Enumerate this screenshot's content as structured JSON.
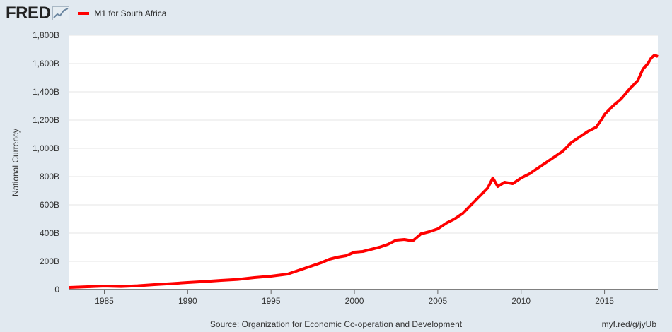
{
  "header": {
    "logo_text": "FRED",
    "legend_label": "M1 for South Africa"
  },
  "footer": {
    "source": "Source: Organization for Economic Co-operation and Development",
    "url": "myf.red/g/jyUb"
  },
  "colors": {
    "series": "#ff0000",
    "background": "#e1e9f0",
    "plot": "#ffffff"
  },
  "chart_data": {
    "type": "line",
    "title": "",
    "xlabel": "",
    "ylabel": "National Currency",
    "xlim": [
      1982.9,
      2018.2
    ],
    "ylim": [
      0,
      1800
    ],
    "grid": true,
    "legend": "top-left",
    "xticks": [
      1985,
      1990,
      1995,
      2000,
      2005,
      2010,
      2015
    ],
    "yticks": [
      0,
      200,
      400,
      600,
      800,
      1000,
      1200,
      1400,
      1600,
      1800
    ],
    "ytick_labels": [
      "0",
      "200B",
      "400B",
      "600B",
      "800B",
      "1,000B",
      "1,200B",
      "1,400B",
      "1,600B",
      "1,800B"
    ],
    "series": [
      {
        "name": "M1 for South Africa",
        "color": "#ff0000",
        "x": [
          1982.9,
          1984.0,
          1985.0,
          1986.0,
          1987.0,
          1988.0,
          1989.0,
          1990.0,
          1991.0,
          1992.0,
          1993.0,
          1994.0,
          1995.0,
          1996.0,
          1996.5,
          1997.0,
          1997.5,
          1998.0,
          1998.5,
          1999.0,
          1999.5,
          2000.0,
          2000.5,
          2001.0,
          2001.5,
          2002.0,
          2002.5,
          2003.0,
          2003.5,
          2004.0,
          2004.5,
          2005.0,
          2005.5,
          2006.0,
          2006.5,
          2007.0,
          2007.5,
          2008.0,
          2008.3,
          2008.6,
          2009.0,
          2009.5,
          2010.0,
          2010.5,
          2011.0,
          2011.5,
          2012.0,
          2012.5,
          2013.0,
          2013.5,
          2014.0,
          2014.5,
          2014.8,
          2015.0,
          2015.5,
          2016.0,
          2016.5,
          2017.0,
          2017.3,
          2017.6,
          2017.8,
          2018.0,
          2018.2
        ],
        "values": [
          15,
          20,
          25,
          22,
          27,
          35,
          42,
          50,
          57,
          65,
          72,
          85,
          95,
          110,
          130,
          150,
          170,
          190,
          215,
          230,
          240,
          265,
          270,
          285,
          300,
          320,
          350,
          355,
          345,
          395,
          410,
          430,
          470,
          500,
          540,
          600,
          660,
          720,
          790,
          730,
          760,
          750,
          790,
          820,
          860,
          900,
          940,
          980,
          1040,
          1080,
          1120,
          1150,
          1200,
          1240,
          1300,
          1350,
          1420,
          1480,
          1560,
          1600,
          1640,
          1660,
          1650
        ]
      }
    ]
  }
}
